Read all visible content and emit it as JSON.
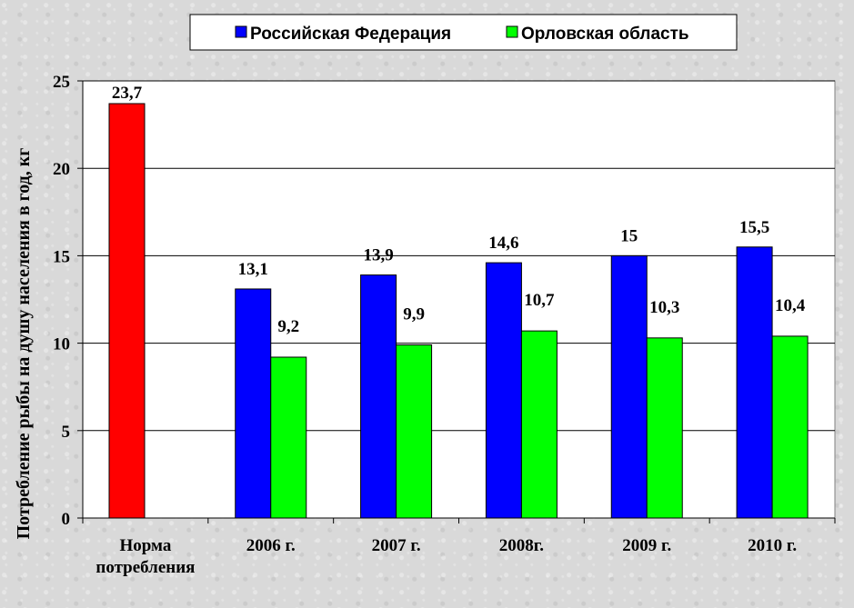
{
  "chart_data": {
    "type": "bar",
    "categories": [
      [
        "Норма",
        "потребления"
      ],
      [
        "2006 г."
      ],
      [
        "2007 г."
      ],
      [
        "2008г."
      ],
      [
        "2009 г."
      ],
      [
        "2010 г."
      ]
    ],
    "series": [
      {
        "name": "",
        "color": "#ff0000",
        "values": [
          23.7,
          null,
          null,
          null,
          null,
          null
        ],
        "labels": [
          "23,7",
          "",
          "",
          "",
          "",
          ""
        ]
      },
      {
        "name": "Российская Федерация",
        "color": "#0000ff",
        "values": [
          null,
          13.1,
          13.9,
          14.6,
          15,
          15.5
        ],
        "labels": [
          "",
          "13,1",
          "13,9",
          "14,6",
          "15",
          "15,5"
        ]
      },
      {
        "name": "Орловская область",
        "color": "#00ff00",
        "values": [
          null,
          9.2,
          9.9,
          10.7,
          10.3,
          10.4
        ],
        "labels": [
          "",
          "9,2",
          "9,9",
          "10,7",
          "10,3",
          "10,4"
        ]
      }
    ],
    "ylabel": "Потребление рыбы на душу населения в год, кг",
    "ylim": [
      0,
      25
    ],
    "yticks": [
      0,
      5,
      10,
      15,
      20,
      25
    ],
    "grid": true,
    "legend_position": "top",
    "plot_background": "#ffffff"
  }
}
